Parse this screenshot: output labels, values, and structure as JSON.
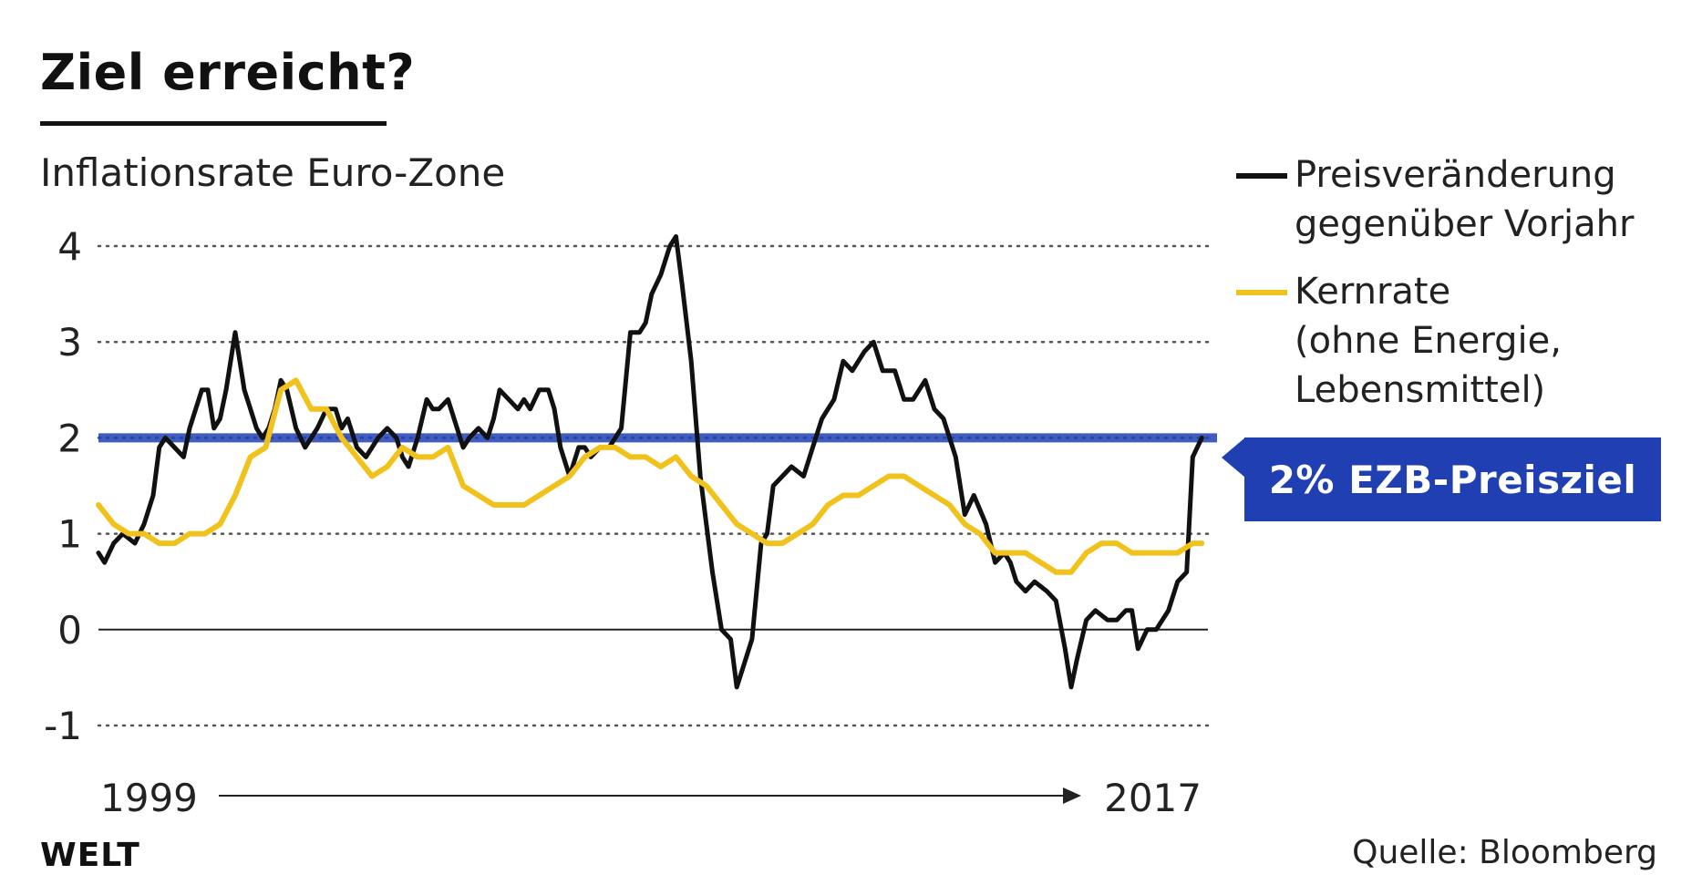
{
  "header": {
    "title": "Ziel erreicht?",
    "subtitle": "Inflationsrate Euro-Zone"
  },
  "legend": {
    "headline": "Preisveränderung\ngegenüber Vorjahr",
    "core": "Kernrate\n(ohne Energie,\nLebensmittel)"
  },
  "target_label": "2% EZB-Preisziel",
  "logo": "WELT",
  "source": "Quelle: Bloomberg",
  "colors": {
    "headline": "#111111",
    "core": "#f2c21c",
    "target": "#1f3fb3",
    "grid": "#555555"
  },
  "chart_data": {
    "type": "line",
    "title": "Inflationsrate Euro-Zone",
    "x_range_label": [
      "1999",
      "2017"
    ],
    "xlim": [
      1999,
      2017.25
    ],
    "ylim": [
      -1,
      4
    ],
    "yticks": [
      4,
      3,
      2,
      1,
      0,
      -1
    ],
    "ytick_labels": [
      "4",
      "3",
      "2",
      "1",
      "0",
      "-1"
    ],
    "grid": "dotted horizontal",
    "reference_line": {
      "y": 2,
      "label": "2% EZB-Preisziel"
    },
    "series": [
      {
        "name": "Preisveränderung gegenüber Vorjahr",
        "x": [
          1999.0,
          1999.1,
          1999.25,
          1999.4,
          1999.6,
          1999.75,
          1999.9,
          2000.0,
          2000.1,
          2000.25,
          2000.4,
          2000.5,
          2000.6,
          2000.7,
          2000.8,
          2000.9,
          2001.0,
          2001.1,
          2001.25,
          2001.35,
          2001.4,
          2001.5,
          2001.6,
          2001.7,
          2001.8,
          2001.9,
          2002.0,
          2002.1,
          2002.25,
          2002.4,
          2002.6,
          2002.75,
          2002.9,
          2003.0,
          2003.1,
          2003.25,
          2003.4,
          2003.6,
          2003.75,
          2003.9,
          2004.0,
          2004.1,
          2004.25,
          2004.4,
          2004.5,
          2004.6,
          2004.75,
          2004.9,
          2005.0,
          2005.1,
          2005.25,
          2005.4,
          2005.5,
          2005.6,
          2005.75,
          2005.9,
          2006.0,
          2006.1,
          2006.25,
          2006.4,
          2006.5,
          2006.6,
          2006.75,
          2006.9,
          2007.0,
          2007.1,
          2007.25,
          2007.4,
          2007.6,
          2007.75,
          2007.9,
          2008.0,
          2008.1,
          2008.25,
          2008.4,
          2008.5,
          2008.6,
          2008.75,
          2008.9,
          2009.0,
          2009.1,
          2009.25,
          2009.4,
          2009.5,
          2009.6,
          2009.75,
          2009.9,
          2010.0,
          2010.1,
          2010.25,
          2010.4,
          2010.6,
          2010.75,
          2010.9,
          2011.0,
          2011.1,
          2011.25,
          2011.4,
          2011.6,
          2011.75,
          2011.9,
          2012.0,
          2012.1,
          2012.25,
          2012.4,
          2012.6,
          2012.75,
          2012.9,
          2013.0,
          2013.1,
          2013.25,
          2013.4,
          2013.6,
          2013.75,
          2013.9,
          2014.0,
          2014.1,
          2014.25,
          2014.4,
          2014.6,
          2014.75,
          2014.9,
          2015.0,
          2015.1,
          2015.25,
          2015.4,
          2015.6,
          2015.75,
          2015.9,
          2016.0,
          2016.1,
          2016.25,
          2016.4,
          2016.6,
          2016.75,
          2016.9,
          2017.0,
          2017.15
        ],
        "values": [
          0.8,
          0.7,
          0.9,
          1.0,
          0.9,
          1.1,
          1.4,
          1.9,
          2.0,
          1.9,
          1.8,
          2.1,
          2.3,
          2.5,
          2.5,
          2.1,
          2.2,
          2.5,
          3.1,
          2.7,
          2.5,
          2.3,
          2.1,
          2.0,
          2.1,
          2.3,
          2.6,
          2.5,
          2.1,
          1.9,
          2.1,
          2.3,
          2.3,
          2.1,
          2.2,
          1.9,
          1.8,
          2.0,
          2.1,
          2.0,
          1.8,
          1.7,
          2.0,
          2.4,
          2.3,
          2.3,
          2.4,
          2.1,
          1.9,
          2.0,
          2.1,
          2.0,
          2.2,
          2.5,
          2.4,
          2.3,
          2.4,
          2.3,
          2.5,
          2.5,
          2.3,
          1.9,
          1.6,
          1.9,
          1.9,
          1.8,
          1.9,
          1.9,
          2.1,
          3.1,
          3.1,
          3.2,
          3.5,
          3.7,
          4.0,
          4.1,
          3.6,
          2.8,
          1.6,
          1.1,
          0.6,
          0.0,
          -0.1,
          -0.6,
          -0.4,
          -0.1,
          0.9,
          1.0,
          1.5,
          1.6,
          1.7,
          1.6,
          1.9,
          2.2,
          2.3,
          2.4,
          2.8,
          2.7,
          2.9,
          3.0,
          2.7,
          2.7,
          2.7,
          2.4,
          2.4,
          2.6,
          2.3,
          2.2,
          2.0,
          1.8,
          1.2,
          1.4,
          1.1,
          0.7,
          0.8,
          0.7,
          0.5,
          0.4,
          0.5,
          0.4,
          0.3,
          -0.2,
          -0.6,
          -0.3,
          0.1,
          0.2,
          0.1,
          0.1,
          0.2,
          0.2,
          -0.2,
          0.0,
          0.0,
          0.2,
          0.5,
          0.6,
          1.8,
          2.0
        ],
        "color": "#111111"
      },
      {
        "name": "Kernrate (ohne Energie, Lebensmittel)",
        "x": [
          1999.0,
          1999.25,
          1999.5,
          1999.75,
          2000.0,
          2000.25,
          2000.5,
          2000.75,
          2001.0,
          2001.25,
          2001.5,
          2001.75,
          2002.0,
          2002.25,
          2002.5,
          2002.75,
          2003.0,
          2003.25,
          2003.5,
          2003.75,
          2004.0,
          2004.25,
          2004.5,
          2004.75,
          2005.0,
          2005.25,
          2005.5,
          2005.75,
          2006.0,
          2006.25,
          2006.5,
          2006.75,
          2007.0,
          2007.25,
          2007.5,
          2007.75,
          2008.0,
          2008.25,
          2008.5,
          2008.75,
          2009.0,
          2009.25,
          2009.5,
          2009.75,
          2010.0,
          2010.25,
          2010.5,
          2010.75,
          2011.0,
          2011.25,
          2011.5,
          2011.75,
          2012.0,
          2012.25,
          2012.5,
          2012.75,
          2013.0,
          2013.25,
          2013.5,
          2013.75,
          2014.0,
          2014.25,
          2014.5,
          2014.75,
          2015.0,
          2015.25,
          2015.5,
          2015.75,
          2016.0,
          2016.25,
          2016.5,
          2016.75,
          2017.0,
          2017.15
        ],
        "values": [
          1.3,
          1.1,
          1.0,
          1.0,
          0.9,
          0.9,
          1.0,
          1.0,
          1.1,
          1.4,
          1.8,
          1.9,
          2.5,
          2.6,
          2.3,
          2.3,
          2.0,
          1.8,
          1.6,
          1.7,
          1.9,
          1.8,
          1.8,
          1.9,
          1.5,
          1.4,
          1.3,
          1.3,
          1.3,
          1.4,
          1.5,
          1.6,
          1.8,
          1.9,
          1.9,
          1.8,
          1.8,
          1.7,
          1.8,
          1.6,
          1.5,
          1.3,
          1.1,
          1.0,
          0.9,
          0.9,
          1.0,
          1.1,
          1.3,
          1.4,
          1.4,
          1.5,
          1.6,
          1.6,
          1.5,
          1.4,
          1.3,
          1.1,
          1.0,
          0.8,
          0.8,
          0.8,
          0.7,
          0.6,
          0.6,
          0.8,
          0.9,
          0.9,
          0.8,
          0.8,
          0.8,
          0.8,
          0.9,
          0.9
        ],
        "color": "#f2c21c"
      }
    ]
  }
}
